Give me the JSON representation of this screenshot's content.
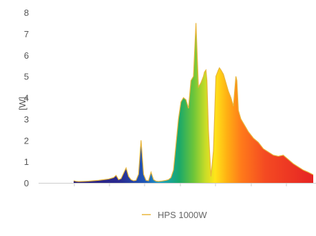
{
  "chart_data": {
    "type": "area",
    "title": "",
    "xlabel": "",
    "ylabel": "[W]",
    "ylim": [
      0,
      8
    ],
    "yticks": [
      "0",
      "1",
      "2",
      "3",
      "4",
      "5",
      "6",
      "7",
      "8"
    ],
    "grid": false,
    "legend_position": "bottom",
    "series": [
      {
        "name": "HPS 1000W",
        "line_color": "#e8b53a",
        "fill": "spectral-gradient",
        "x_nm": [
          300,
          305,
          310,
          320,
          330,
          340,
          350,
          360,
          370,
          380,
          385,
          390,
          395,
          400,
          405,
          410,
          415,
          420,
          425,
          430,
          435,
          440,
          445,
          450,
          455,
          460,
          465,
          470,
          475,
          480,
          485,
          490,
          495,
          500,
          505,
          510,
          515,
          520,
          525,
          530,
          535,
          540,
          545,
          550,
          555,
          560,
          562,
          565,
          567,
          570,
          575,
          580,
          585,
          590,
          592,
          595,
          600,
          605,
          610,
          615,
          620,
          625,
          627,
          630,
          635,
          640,
          645,
          650,
          660,
          670,
          680,
          690,
          700,
          710,
          720,
          730,
          740,
          750,
          760,
          770,
          780
        ],
        "values": [
          0.1,
          0.07,
          0.06,
          0.07,
          0.08,
          0.1,
          0.12,
          0.15,
          0.18,
          0.25,
          0.35,
          0.15,
          0.2,
          0.45,
          0.7,
          0.3,
          0.15,
          0.1,
          0.12,
          0.4,
          2.0,
          0.4,
          0.12,
          0.1,
          0.5,
          0.15,
          0.08,
          0.07,
          0.08,
          0.1,
          0.12,
          0.15,
          0.25,
          0.6,
          1.8,
          3.0,
          3.8,
          4.0,
          3.9,
          3.5,
          4.8,
          5.0,
          7.5,
          4.5,
          4.7,
          5.0,
          5.2,
          5.3,
          4.8,
          2.5,
          0.3,
          1.5,
          5.0,
          5.3,
          5.4,
          5.3,
          5.1,
          4.7,
          4.3,
          4.0,
          3.6,
          5.0,
          4.8,
          3.4,
          3.0,
          2.8,
          2.6,
          2.4,
          2.1,
          1.9,
          1.6,
          1.45,
          1.3,
          1.25,
          1.3,
          1.1,
          0.9,
          0.75,
          0.6,
          0.5,
          0.38
        ]
      }
    ]
  }
}
